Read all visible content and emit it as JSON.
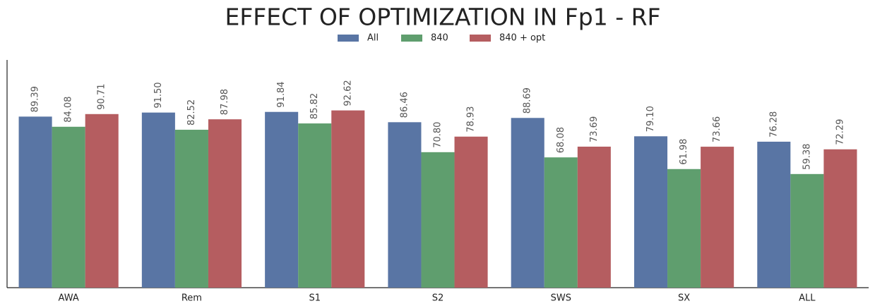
{
  "chart_data": {
    "type": "bar",
    "title": "EFFECT OF OPTIMIZATION IN Fp1 - RF",
    "categories": [
      "AWA",
      "Rem",
      "S1",
      "S2",
      "SWS",
      "SX",
      "ALL"
    ],
    "series": [
      {
        "name": "All",
        "color": "#5975a4",
        "values": [
          89.39,
          91.5,
          91.84,
          86.46,
          88.69,
          79.1,
          76.28
        ],
        "value_labels": [
          "89.39",
          "91.50",
          "91.84",
          "86.46",
          "88.69",
          "79.10",
          "76.28"
        ]
      },
      {
        "name": "840",
        "color": "#5f9e6e",
        "values": [
          84.08,
          82.52,
          85.82,
          70.8,
          68.08,
          61.98,
          59.38
        ],
        "value_labels": [
          "84.08",
          "82.52",
          "85.82",
          "70.80",
          "68.08",
          "61.98",
          "59.38"
        ]
      },
      {
        "name": "840 + opt",
        "color": "#b55d60",
        "values": [
          90.71,
          87.98,
          92.62,
          78.93,
          73.69,
          73.66,
          72.29
        ],
        "value_labels": [
          "90.71",
          "87.98",
          "92.62",
          "78.93",
          "73.69",
          "73.66",
          "72.29"
        ]
      }
    ],
    "ylim": [
      0,
      119
    ],
    "legend": "top"
  }
}
